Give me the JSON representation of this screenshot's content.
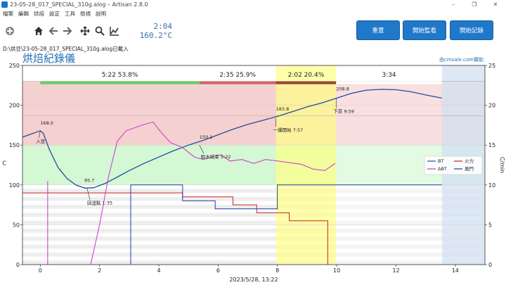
{
  "window": {
    "title": "23-05-28_017_SPECIAL_310g.alog – Artisan 2.8.0",
    "controls": [
      "–",
      "❐",
      "✕"
    ]
  },
  "menu": [
    "檔案",
    "編輯",
    "烘焙",
    "設定",
    "工具",
    "檢視",
    "說明"
  ],
  "toolbar": {
    "icons": [
      "plus-circle-icon",
      "home-icon",
      "back-arrow-icon",
      "forward-arrow-icon",
      "move-icon",
      "zoom-icon",
      "chart-icon"
    ],
    "lcd_time": "2:04",
    "lcd_temp": "160.2°C",
    "buttons": {
      "reset": "重置",
      "start_monitor": "開始監看",
      "start_record": "開始記錄"
    }
  },
  "status": "D:\\烘豆\\23-05-28_017_SPECIAL_310g.alog已載入",
  "plot": {
    "title": "烘焙紀錄儀",
    "credit": "由cmsale.com贊助"
  },
  "colors": {
    "accent": "#1f78c9",
    "bt": "#1f4ea0",
    "dbt": "#cc33cc",
    "heat": "#cc2222",
    "fan": "#1f3aa0"
  },
  "chart_data": {
    "type": "line",
    "xlabel": "2023/5/28, 13:22",
    "ylabel_left": "C",
    "ylabel_right": "C/min",
    "xlim": [
      -0.6,
      15
    ],
    "ylim_left": [
      0,
      250
    ],
    "ylim_right": [
      0,
      25
    ],
    "x_ticks": [
      0,
      2,
      4,
      6,
      8,
      10,
      12,
      14
    ],
    "y_ticks_left": [
      0,
      50,
      100,
      150,
      200,
      250
    ],
    "y_ticks_right": [
      0,
      5,
      10,
      15,
      20,
      25
    ],
    "phases": [
      {
        "label": "5:22  53.8%",
        "start": 0,
        "end": 5.37,
        "color": "#66cc66"
      },
      {
        "label": "2:35  25.9%",
        "start": 5.37,
        "end": 7.95,
        "color": "#cc6666"
      },
      {
        "label": "2:02  20.4%",
        "start": 7.95,
        "end": 9.98,
        "color": "#994433"
      },
      {
        "label": "3:34",
        "start": 9.98,
        "end": 13.55,
        "color": "#ffffff"
      }
    ],
    "legend": [
      {
        "name": "BT",
        "color": "#1f4ea0"
      },
      {
        "name": "ΔBT",
        "color": "#cc33cc"
      },
      {
        "name": "火力",
        "color": "#cc2222"
      },
      {
        "name": "風門",
        "color": "#1f3aa0"
      }
    ],
    "annotations": [
      {
        "text": "168.0",
        "x": 0,
        "y": 168,
        "label": "入豆"
      },
      {
        "text": "95.7",
        "x": 1.58,
        "y": 95.7,
        "label": "回溫點 1:35"
      },
      {
        "text": "150.1",
        "x": 5.37,
        "y": 150.1,
        "label": "脫水結束 5:22"
      },
      {
        "text": "183.8",
        "x": 7.95,
        "y": 183.8,
        "label": "一爆開始 7:57"
      },
      {
        "text": "208.8",
        "x": 9.98,
        "y": 208.8,
        "label": "下豆 9:59"
      }
    ],
    "series": [
      {
        "name": "BT",
        "axis": "left",
        "x": [
          -0.6,
          -0.3,
          0,
          0.1,
          0.3,
          0.6,
          0.9,
          1.2,
          1.5,
          1.8,
          2.2,
          2.6,
          3.0,
          3.5,
          4.0,
          4.5,
          5.0,
          5.5,
          6.0,
          6.5,
          7.0,
          7.5,
          8.0,
          8.5,
          9.0,
          9.5,
          10.0,
          10.5,
          11.0,
          11.5,
          12.0,
          12.5,
          13.0,
          13.55
        ],
        "y": [
          160,
          164,
          168,
          165,
          145,
          122,
          108,
          100,
          96,
          96.5,
          102,
          110,
          118,
          127,
          135,
          143,
          150,
          156,
          163,
          170,
          176,
          181,
          186,
          192,
          198,
          203,
          209,
          215,
          219,
          220,
          219.5,
          217,
          213,
          209
        ]
      },
      {
        "name": "ΔBT",
        "axis": "right",
        "x": [
          1.7,
          2.0,
          2.3,
          2.6,
          2.9,
          3.2,
          3.5,
          3.8,
          4.1,
          4.4,
          4.8,
          5.2,
          5.5,
          5.8,
          6.1,
          6.4,
          6.8,
          7.2,
          7.6,
          8.0,
          8.4,
          8.8,
          9.2,
          9.6,
          9.95
        ],
        "y": [
          0,
          5,
          11,
          15.5,
          16.8,
          17.2,
          17.6,
          17.9,
          16.5,
          15.3,
          14.7,
          13.5,
          13.2,
          13.5,
          13.8,
          13.0,
          13.2,
          12.7,
          13.2,
          13.0,
          12.8,
          12.6,
          12.0,
          11.8,
          12.7
        ]
      },
      {
        "name": "火力",
        "axis": "right",
        "x": [
          -0.6,
          4.8,
          4.8,
          6.5,
          6.5,
          7.3,
          7.3,
          8.4,
          8.4,
          9.7,
          9.7
        ],
        "y": [
          9,
          9,
          8.5,
          8.5,
          7.5,
          7.5,
          6.5,
          6.5,
          5.5,
          5.5,
          0
        ]
      },
      {
        "name": "風門",
        "axis": "right",
        "x": [
          3.05,
          3.05,
          4.8,
          4.8,
          5.9,
          5.9,
          8.0,
          8.0,
          13.55
        ],
        "y": [
          0,
          10,
          10,
          8,
          8,
          7,
          7,
          10,
          10
        ]
      }
    ]
  }
}
